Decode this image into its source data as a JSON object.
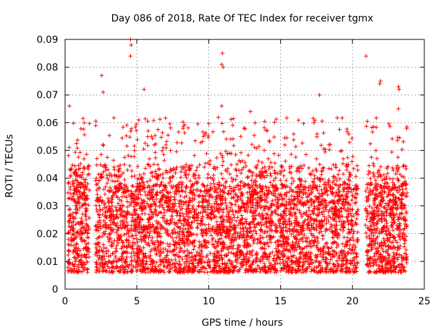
{
  "chart_data": {
    "type": "scatter",
    "title": "Day 086 of 2018, Rate Of TEC Index for receiver tgmx",
    "xlabel": "GPS time / hours",
    "ylabel": "ROTI / TECUs",
    "xlim": [
      0,
      25
    ],
    "ylim": [
      0,
      0.09
    ],
    "xticks": [
      "0",
      "5",
      "10",
      "15",
      "20",
      "25"
    ],
    "yticks": [
      "0",
      "0.01",
      "0.02",
      "0.03",
      "0.04",
      "0.05",
      "0.06",
      "0.07",
      "0.08",
      "0.09"
    ],
    "grid": true,
    "marker": "plus",
    "color": "#ff0000",
    "data_gaps_hours": [
      [
        1.7,
        2.1
      ],
      [
        20.4,
        20.9
      ]
    ],
    "notable_points": [
      {
        "x": 4.55,
        "y": 0.09
      },
      {
        "x": 4.6,
        "y": 0.088
      },
      {
        "x": 4.55,
        "y": 0.084
      },
      {
        "x": 10.95,
        "y": 0.085
      },
      {
        "x": 10.9,
        "y": 0.081
      },
      {
        "x": 11.0,
        "y": 0.08
      },
      {
        "x": 20.95,
        "y": 0.084
      },
      {
        "x": 2.55,
        "y": 0.077
      },
      {
        "x": 21.95,
        "y": 0.075
      },
      {
        "x": 21.9,
        "y": 0.074
      },
      {
        "x": 23.2,
        "y": 0.073
      },
      {
        "x": 23.25,
        "y": 0.072
      },
      {
        "x": 5.5,
        "y": 0.072
      },
      {
        "x": 2.65,
        "y": 0.071
      },
      {
        "x": 17.7,
        "y": 0.07
      },
      {
        "x": 10.9,
        "y": 0.066
      },
      {
        "x": 0.3,
        "y": 0.066
      },
      {
        "x": 23.2,
        "y": 0.065
      },
      {
        "x": 12.9,
        "y": 0.064
      }
    ],
    "bulk_range": {
      "y_min": 0.004,
      "y_max": 0.062
    }
  }
}
